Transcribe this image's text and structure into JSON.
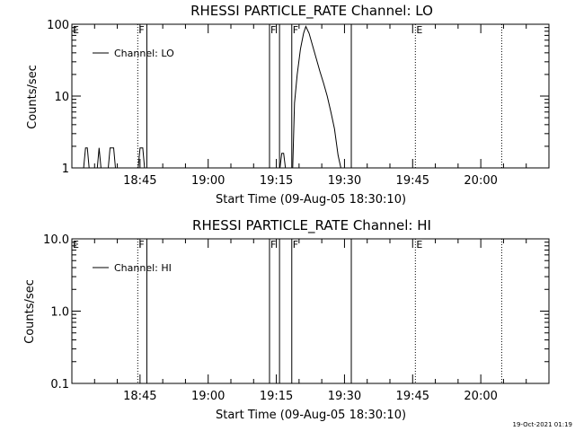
{
  "stamp": "19-Oct-2021 01:19",
  "chart_data": [
    {
      "type": "line",
      "title": "RHESSI PARTICLE_RATE Channel: LO",
      "xlabel": "Start Time (09-Aug-05 18:30:10)",
      "ylabel": "Counts/sec",
      "ylog": true,
      "ylim": [
        1,
        100
      ],
      "xlim_minutes": [
        0,
        105
      ],
      "ytick_labels": [
        {
          "v": 1,
          "label": "1"
        },
        {
          "v": 10,
          "label": "10"
        },
        {
          "v": 100,
          "label": "100"
        }
      ],
      "xtick_labels": [
        {
          "m": 15,
          "label": "18:45"
        },
        {
          "m": 30,
          "label": "19:00"
        },
        {
          "m": 45,
          "label": "19:15"
        },
        {
          "m": 60,
          "label": "19:30"
        },
        {
          "m": 75,
          "label": "19:45"
        },
        {
          "m": 90,
          "label": "20:00"
        }
      ],
      "legend": {
        "label": "Channel: LO",
        "position": "top-left"
      },
      "markers": [
        {
          "m": 0,
          "label": "E",
          "style": "none"
        },
        {
          "m": 14.5,
          "label": "F",
          "style": "dotted"
        },
        {
          "m": 16.5,
          "label": "",
          "style": "solid"
        },
        {
          "m": 43.5,
          "label": "F",
          "style": "solid"
        },
        {
          "m": 45.7,
          "label": "",
          "style": "solid"
        },
        {
          "m": 48.4,
          "label": "F",
          "style": "solid"
        },
        {
          "m": 61.5,
          "label": "",
          "style": "solid"
        },
        {
          "m": 75.6,
          "label": "E",
          "style": "dotted"
        },
        {
          "m": 94.6,
          "label": "",
          "style": "dotted"
        }
      ],
      "series": [
        {
          "segments": [
            [
              [
                2.6,
                1
              ],
              [
                3.0,
                1.9
              ],
              [
                3.4,
                1.9
              ],
              [
                3.8,
                1
              ]
            ],
            [
              [
                5.6,
                1
              ],
              [
                6.0,
                1.9
              ],
              [
                6.4,
                1
              ]
            ],
            [
              [
                8.0,
                1
              ],
              [
                8.4,
                1.9
              ],
              [
                9.2,
                1.9
              ],
              [
                9.6,
                1
              ]
            ],
            [
              [
                14.6,
                1
              ],
              [
                15.0,
                1.9
              ],
              [
                15.6,
                1.9
              ],
              [
                16.0,
                1
              ]
            ],
            [
              [
                45.8,
                1
              ],
              [
                46.2,
                1.6
              ],
              [
                46.6,
                1.6
              ],
              [
                47.0,
                1
              ]
            ],
            [
              [
                48.6,
                1
              ],
              [
                49.0,
                8
              ],
              [
                49.6,
                20
              ],
              [
                50.3,
                45
              ],
              [
                51.0,
                75
              ],
              [
                51.5,
                93
              ],
              [
                52.2,
                75
              ],
              [
                53.0,
                50
              ],
              [
                53.8,
                33
              ],
              [
                54.6,
                22
              ],
              [
                55.4,
                15
              ],
              [
                56.2,
                10
              ],
              [
                57.0,
                6
              ],
              [
                57.8,
                3.5
              ],
              [
                58.6,
                1.5
              ],
              [
                59.2,
                1
              ]
            ]
          ]
        }
      ]
    },
    {
      "type": "line",
      "title": "RHESSI PARTICLE_RATE Channel: HI",
      "xlabel": "Start Time (09-Aug-05 18:30:10)",
      "ylabel": "Counts/sec",
      "ylog": true,
      "ylim": [
        0.1,
        10
      ],
      "xlim_minutes": [
        0,
        105
      ],
      "ytick_labels": [
        {
          "v": 0.1,
          "label": "0.1"
        },
        {
          "v": 1,
          "label": "1.0"
        },
        {
          "v": 10,
          "label": "10.0"
        }
      ],
      "xtick_labels": [
        {
          "m": 15,
          "label": "18:45"
        },
        {
          "m": 30,
          "label": "19:00"
        },
        {
          "m": 45,
          "label": "19:15"
        },
        {
          "m": 60,
          "label": "19:30"
        },
        {
          "m": 75,
          "label": "19:45"
        },
        {
          "m": 90,
          "label": "20:00"
        }
      ],
      "legend": {
        "label": "Channel: HI",
        "position": "top-left"
      },
      "markers": [
        {
          "m": 0,
          "label": "E",
          "style": "none"
        },
        {
          "m": 14.5,
          "label": "F",
          "style": "dotted"
        },
        {
          "m": 16.5,
          "label": "",
          "style": "solid"
        },
        {
          "m": 43.5,
          "label": "F",
          "style": "solid"
        },
        {
          "m": 45.7,
          "label": "",
          "style": "solid"
        },
        {
          "m": 48.4,
          "label": "F",
          "style": "solid"
        },
        {
          "m": 61.5,
          "label": "",
          "style": "solid"
        },
        {
          "m": 75.6,
          "label": "E",
          "style": "dotted"
        },
        {
          "m": 94.6,
          "label": "",
          "style": "dotted"
        }
      ],
      "series": [
        {
          "segments": []
        }
      ]
    }
  ]
}
